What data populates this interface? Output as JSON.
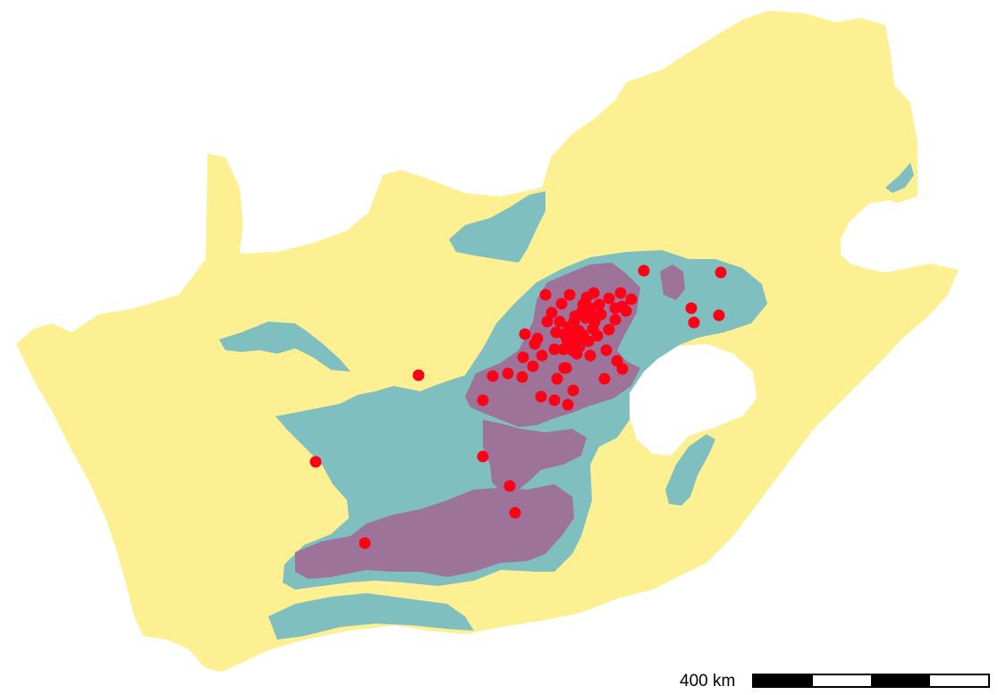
{
  "map": {
    "colors": {
      "background": "#ffffff",
      "land": "#fdf093",
      "teal_zone": "#7fbfbf",
      "purple_zone": "#9e7399",
      "points": "#ff0016"
    },
    "point_count": 76
  },
  "scale": {
    "label": "400 km",
    "segments": [
      "black",
      "white",
      "black",
      "white"
    ]
  }
}
